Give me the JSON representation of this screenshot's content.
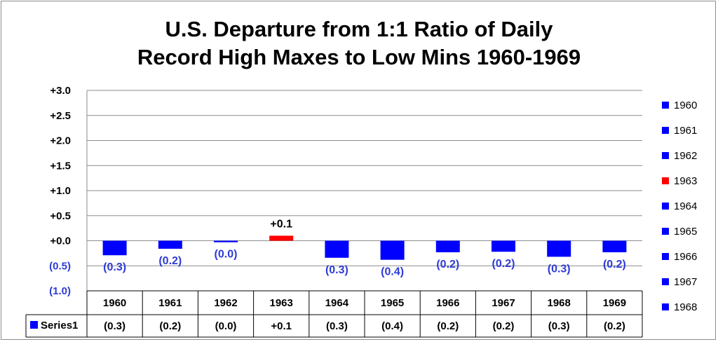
{
  "title_lines": [
    "U.S. Departure from 1:1 Ratio of Daily",
    "Record High Maxes to Low Mins 1960-1969"
  ],
  "colors": {
    "negative": "#0000ff",
    "positive": "#ff0000",
    "grid": "#8c8c8c",
    "label_negative": "#2e3bd6",
    "label_positive": "#000000"
  },
  "chart_data": {
    "type": "bar",
    "title": "U.S. Departure from 1:1 Ratio of Daily Record High Maxes to Low Mins 1960-1969",
    "categories": [
      "1960",
      "1961",
      "1962",
      "1963",
      "1964",
      "1965",
      "1966",
      "1967",
      "1968",
      "1969"
    ],
    "series": [
      {
        "name": "Series1",
        "values": [
          -0.29,
          -0.16,
          -0.03,
          0.1,
          -0.34,
          -0.38,
          -0.23,
          -0.22,
          -0.32,
          -0.23
        ]
      }
    ],
    "data_labels": [
      "(0.3)",
      "(0.2)",
      "(0.0)",
      "+0.1",
      "(0.3)",
      "(0.4)",
      "(0.2)",
      "(0.2)",
      "(0.3)",
      "(0.2)"
    ],
    "y_tick_values": [
      3.0,
      2.5,
      2.0,
      1.5,
      1.0,
      0.5,
      0.0,
      -0.5,
      -1.0
    ],
    "y_tick_labels": [
      "+3.0",
      "+2.5",
      "+2.0",
      "+1.5",
      "+1.0",
      "+0.5",
      "+0.0",
      "(0.5)",
      "(1.0)"
    ],
    "ylim": [
      -1.0,
      3.0
    ],
    "grid": true,
    "data_table": true,
    "table_series_label": "Series1",
    "legend_position": "right",
    "legend_entries": [
      "1960",
      "1961",
      "1962",
      "1963",
      "1964",
      "1965",
      "1966",
      "1967",
      "1968"
    ],
    "legend_colors": [
      "#0000ff",
      "#0000ff",
      "#0000ff",
      "#ff0000",
      "#0000ff",
      "#0000ff",
      "#0000ff",
      "#0000ff",
      "#0000ff"
    ]
  }
}
